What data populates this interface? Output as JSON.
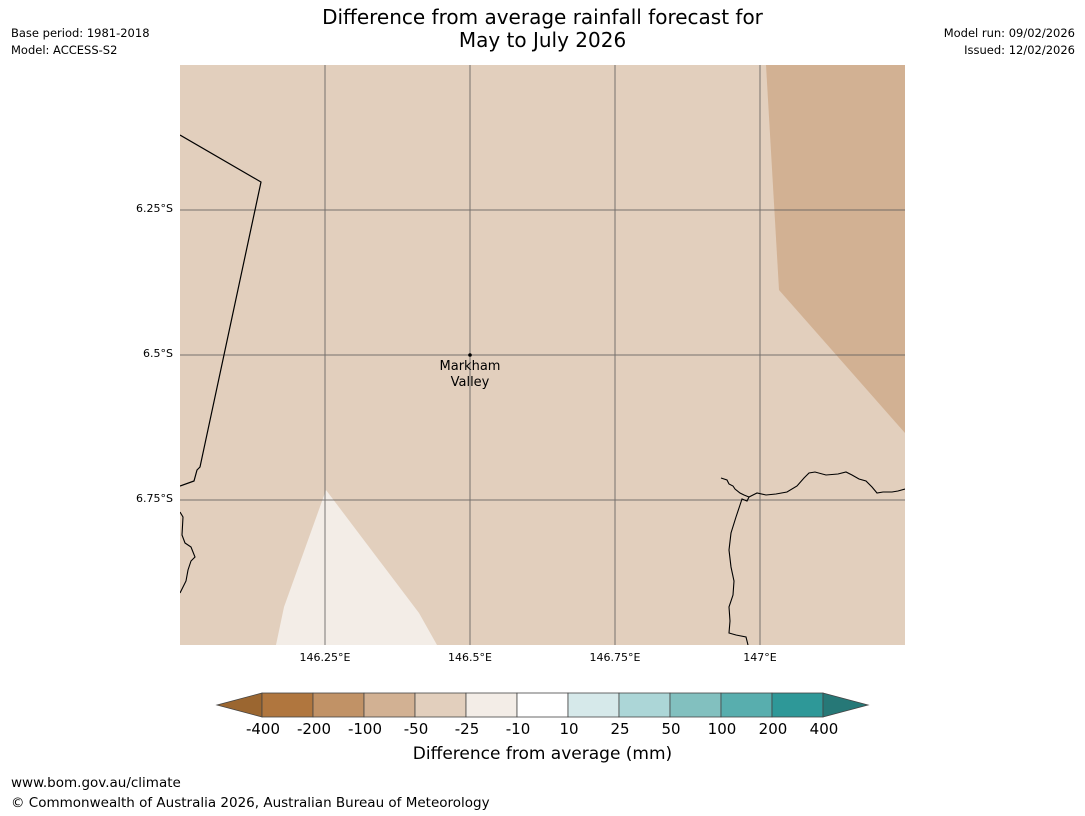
{
  "header": {
    "title_line1": "Difference from average rainfall forecast for",
    "title_line2": "May to July 2026",
    "base_period": "Base period: 1981-2018",
    "model": "Model: ACCESS-S2",
    "model_run": "Model run: 09/02/2026",
    "issued": "Issued: 12/02/2026"
  },
  "map": {
    "lat_labels": [
      "6.25°S",
      "6.5°S",
      "6.75°S"
    ],
    "lon_labels": [
      "146.25°E",
      "146.5°E",
      "146.75°E",
      "147°E"
    ],
    "place": {
      "name_line1": "Markham",
      "name_line2": "Valley"
    },
    "region_colors": {
      "background": "#e2cfbd",
      "northeast_drier": "#d2b193",
      "southwest_near_avg": "#f3ede7"
    }
  },
  "colorbar": {
    "ticks": [
      "-400",
      "-200",
      "-100",
      "-50",
      "-25",
      "-10",
      "10",
      "25",
      "50",
      "100",
      "200",
      "400"
    ],
    "colors": [
      "#9b6630",
      "#b0763e",
      "#c19266",
      "#d2b193",
      "#e2cfbd",
      "#f3ede7",
      "#ffffff",
      "#d6e9ea",
      "#acd6d7",
      "#82c0bf",
      "#58aeae",
      "#2e9898",
      "#267877"
    ],
    "label": "Difference from average (mm)"
  },
  "footer": {
    "url": "www.bom.gov.au/climate",
    "copyright": "© Commonwealth of Australia 2026, Australian Bureau of Meteorology"
  }
}
